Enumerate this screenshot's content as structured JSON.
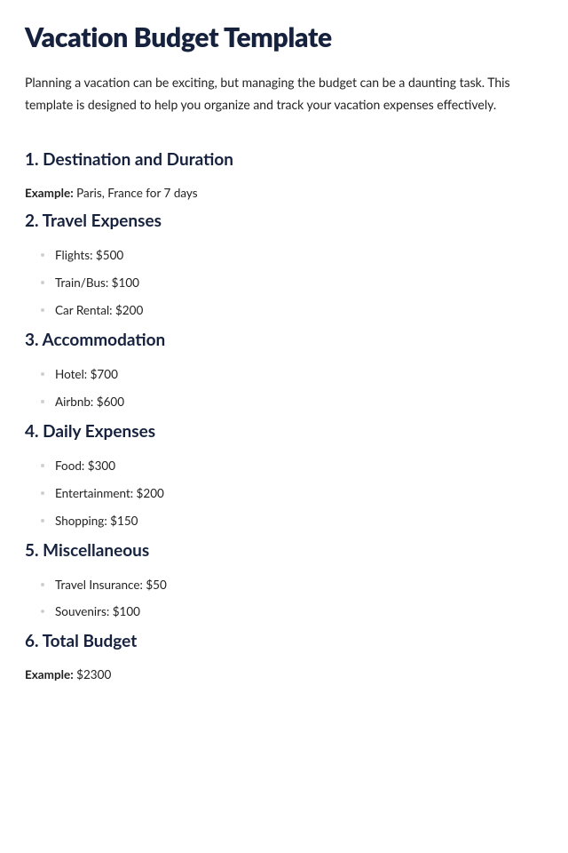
{
  "title": "Vacation Budget Template",
  "intro": "Planning a vacation can be exciting, but managing the budget can be a daunting task. This template is designed to help you organize and track your vacation expenses effectively.",
  "colors": {
    "heading": "#16213e",
    "body": "#222222",
    "bullet": "#cfcfd4",
    "background": "#ffffff"
  },
  "typography": {
    "h1_fontsize": 30,
    "h2_fontsize": 19,
    "body_fontsize": 13.5,
    "h1_weight": 800,
    "h2_weight": 700
  },
  "sections": [
    {
      "heading": "1. Destination and Duration",
      "example_label": "Example:",
      "example_value": " Paris, France for 7 days",
      "items": []
    },
    {
      "heading": "2. Travel Expenses",
      "items": [
        "Flights: $500",
        "Train/Bus: $100",
        "Car Rental: $200"
      ]
    },
    {
      "heading": "3. Accommodation",
      "items": [
        "Hotel: $700",
        "Airbnb: $600"
      ]
    },
    {
      "heading": "4. Daily Expenses",
      "items": [
        "Food: $300",
        "Entertainment: $200",
        "Shopping: $150"
      ]
    },
    {
      "heading": "5. Miscellaneous",
      "items": [
        "Travel Insurance: $50",
        "Souvenirs: $100"
      ]
    },
    {
      "heading": "6. Total Budget",
      "example_label": "Example:",
      "example_value": " $2300",
      "items": []
    }
  ]
}
